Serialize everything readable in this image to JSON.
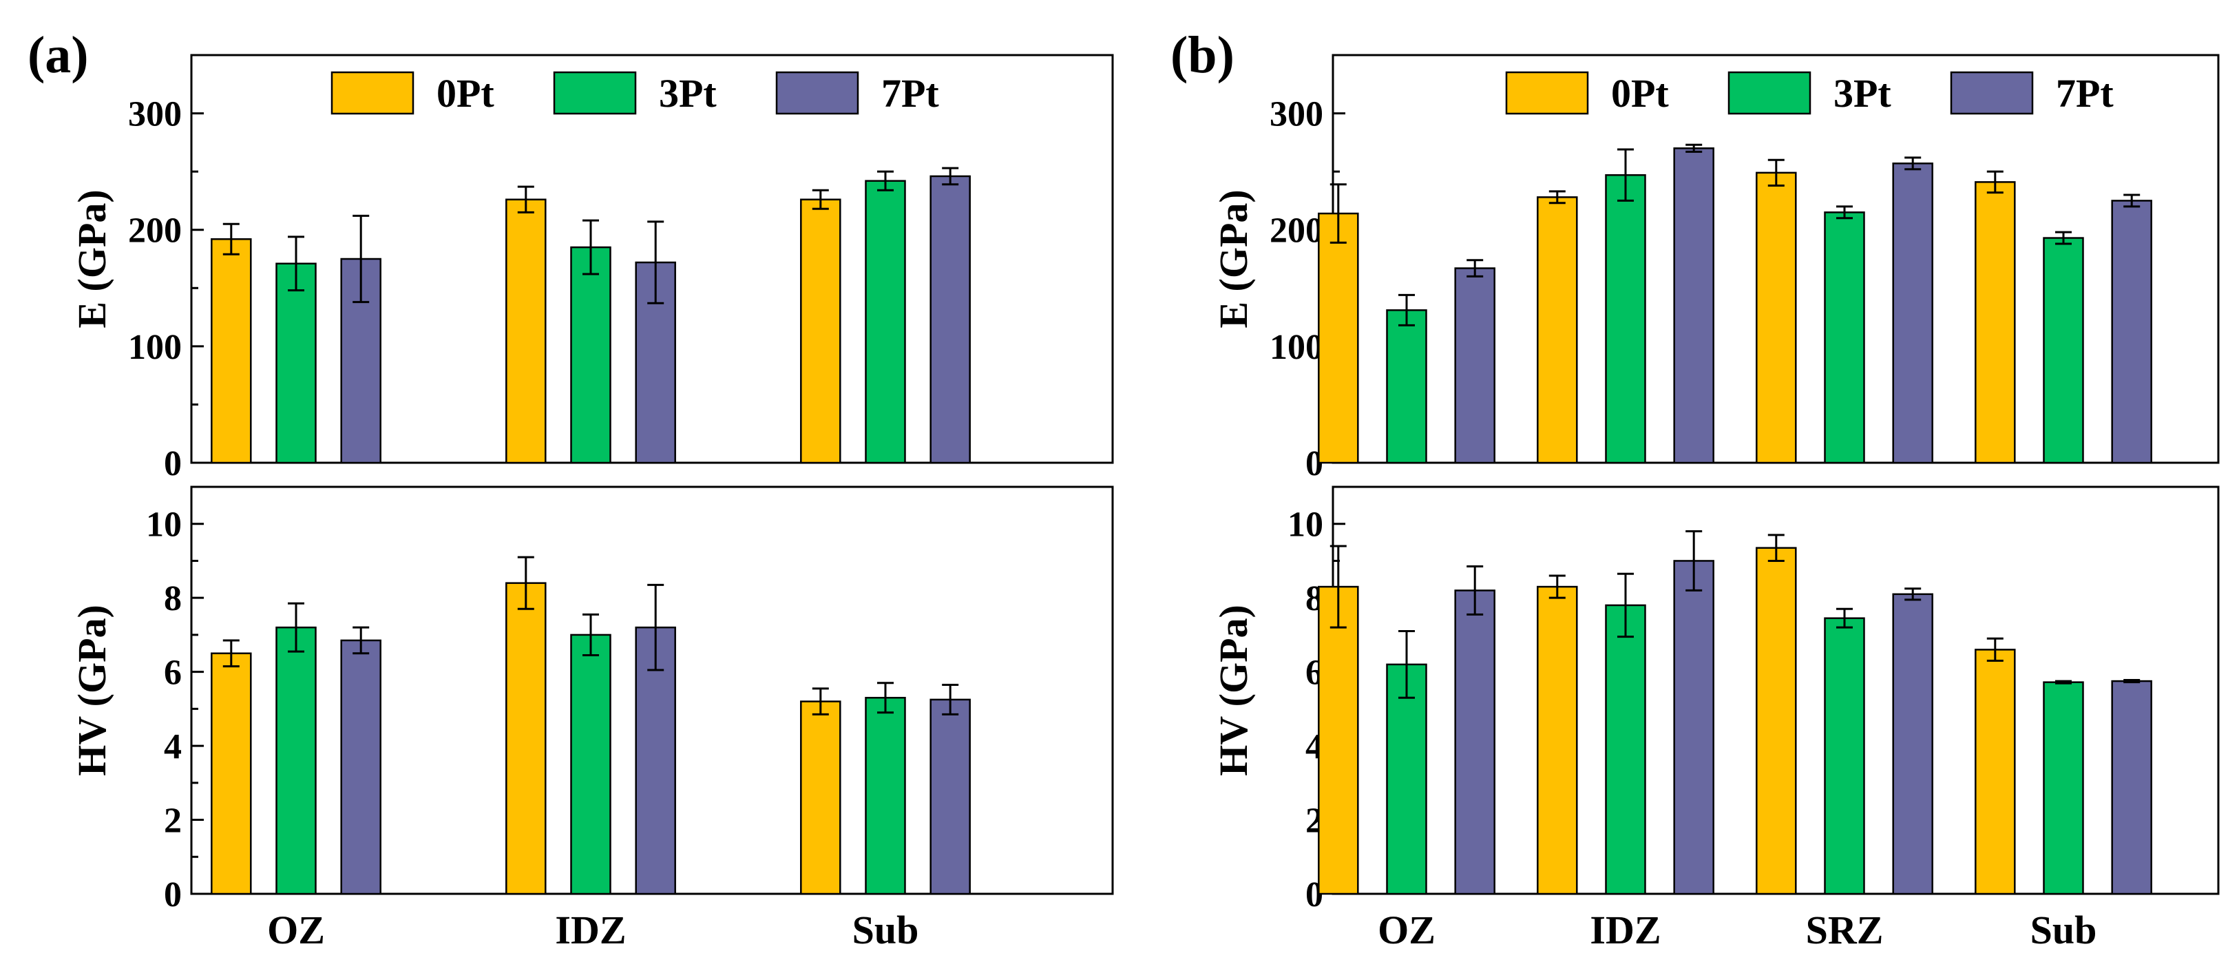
{
  "figure": {
    "panels": [
      {
        "label": "(a)"
      },
      {
        "label": "(b)"
      }
    ]
  },
  "legend": [
    {
      "name": "0Pt",
      "color": "#FFC000"
    },
    {
      "name": "3Pt",
      "color": "#00C060"
    },
    {
      "name": "7Pt",
      "color": "#6868A0"
    }
  ],
  "chart_data": [
    {
      "panel": "(a)",
      "type": "bar",
      "ylabel": "E (GPa)",
      "xlabel": "",
      "ylim": [
        0,
        350
      ],
      "yticks": [
        0,
        100,
        200,
        300
      ],
      "minor_step": 50,
      "categories": [
        "OZ",
        "IDZ",
        "Sub"
      ],
      "show_xticklabels": false,
      "series": [
        {
          "name": "0Pt",
          "values": [
            192,
            226,
            226
          ],
          "errors": [
            13,
            11,
            8
          ]
        },
        {
          "name": "3Pt",
          "values": [
            171,
            185,
            242
          ],
          "errors": [
            23,
            23,
            8
          ]
        },
        {
          "name": "7Pt",
          "values": [
            175,
            172,
            246
          ],
          "errors": [
            37,
            35,
            7
          ]
        }
      ]
    },
    {
      "panel": "(a)",
      "type": "bar",
      "ylabel": "HV (GPa)",
      "xlabel": "",
      "ylim": [
        0,
        11
      ],
      "yticks": [
        0,
        2,
        4,
        6,
        8,
        10
      ],
      "minor_step": 1,
      "categories": [
        "OZ",
        "IDZ",
        "Sub"
      ],
      "show_xticklabels": true,
      "series": [
        {
          "name": "0Pt",
          "values": [
            6.5,
            8.4,
            5.2
          ],
          "errors": [
            0.35,
            0.7,
            0.35
          ]
        },
        {
          "name": "3Pt",
          "values": [
            7.2,
            7.0,
            5.3
          ],
          "errors": [
            0.65,
            0.55,
            0.4
          ]
        },
        {
          "name": "7Pt",
          "values": [
            6.85,
            7.2,
            5.25
          ],
          "errors": [
            0.35,
            1.15,
            0.4
          ]
        }
      ]
    },
    {
      "panel": "(b)",
      "type": "bar",
      "ylabel": "E (GPa)",
      "xlabel": "",
      "ylim": [
        0,
        350
      ],
      "yticks": [
        0,
        100,
        200,
        300
      ],
      "minor_step": 50,
      "categories": [
        "OZ",
        "IDZ",
        "SRZ",
        "Sub"
      ],
      "show_xticklabels": false,
      "series": [
        {
          "name": "0Pt",
          "values": [
            214,
            228,
            249,
            241
          ],
          "errors": [
            25,
            5,
            11,
            9
          ]
        },
        {
          "name": "3Pt",
          "values": [
            131,
            247,
            215,
            193
          ],
          "errors": [
            13,
            22,
            5,
            5
          ]
        },
        {
          "name": "7Pt",
          "values": [
            167,
            270,
            257,
            225
          ],
          "errors": [
            7,
            3,
            5,
            5
          ]
        }
      ]
    },
    {
      "panel": "(b)",
      "type": "bar",
      "ylabel": "HV (GPa)",
      "xlabel": "",
      "ylim": [
        0,
        11
      ],
      "yticks": [
        0,
        2,
        4,
        6,
        8,
        10
      ],
      "minor_step": 1,
      "categories": [
        "OZ",
        "IDZ",
        "SRZ",
        "Sub"
      ],
      "show_xticklabels": true,
      "series": [
        {
          "name": "0Pt",
          "values": [
            8.3,
            8.3,
            9.35,
            6.6
          ],
          "errors": [
            1.1,
            0.3,
            0.35,
            0.3
          ]
        },
        {
          "name": "3Pt",
          "values": [
            6.2,
            7.8,
            7.45,
            5.72
          ],
          "errors": [
            0.9,
            0.85,
            0.25,
            0.03
          ]
        },
        {
          "name": "7Pt",
          "values": [
            8.2,
            9.0,
            8.1,
            5.75
          ],
          "errors": [
            0.65,
            0.8,
            0.15,
            0.03
          ]
        }
      ]
    }
  ]
}
